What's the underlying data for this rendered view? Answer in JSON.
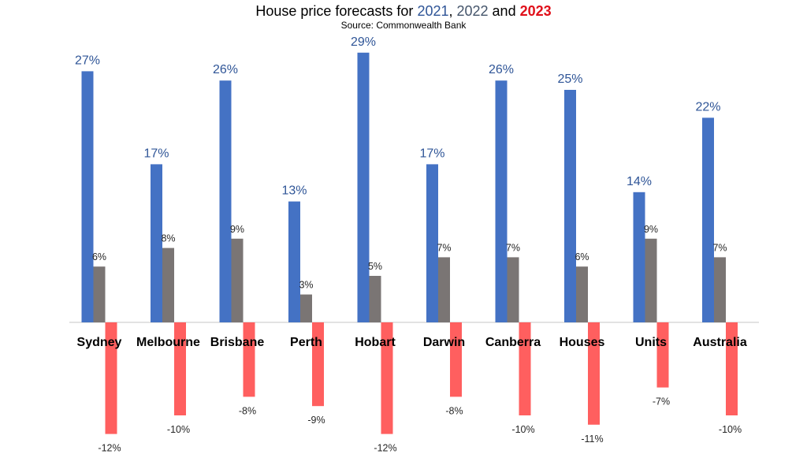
{
  "chart_data": {
    "type": "bar",
    "title_parts": [
      {
        "key": "prefix",
        "text": "House price forecasts for "
      },
      {
        "key": "y2021",
        "text": "2021"
      },
      {
        "key": "sep1",
        "text": ", "
      },
      {
        "key": "y2022",
        "text": "2022"
      },
      {
        "key": "sep2",
        "text": " and "
      },
      {
        "key": "y2023",
        "text": "2023"
      }
    ],
    "subtitle": "Source: Commonwealth Bank",
    "categories": [
      "Sydney",
      "Melbourne",
      "Brisbane",
      "Perth",
      "Hobart",
      "Darwin",
      "Canberra",
      "Houses",
      "Units",
      "Australia"
    ],
    "series": [
      {
        "key": "2021",
        "values": [
          27,
          17,
          26,
          13,
          29,
          17,
          26,
          25,
          14,
          22
        ],
        "labels": [
          "27%",
          "17%",
          "26%",
          "13%",
          "29%",
          "17%",
          "26%",
          "25%",
          "14%",
          "22%"
        ]
      },
      {
        "key": "2022",
        "values": [
          6,
          8,
          9,
          3,
          5,
          7,
          7,
          6,
          9,
          7
        ],
        "labels": [
          "6%",
          "8%",
          "9%",
          "3%",
          "5%",
          "7%",
          "7%",
          "6%",
          "9%",
          "7%"
        ]
      },
      {
        "key": "2023",
        "values": [
          -12,
          -10,
          -8,
          -9,
          -12,
          -8,
          -10,
          -11,
          -7,
          -10
        ],
        "labels": [
          "-12%",
          "-10%",
          "-8%",
          "-9%",
          "-12%",
          "-8%",
          "-10%",
          "-11%",
          "-7%",
          "-10%"
        ]
      }
    ],
    "colors": {
      "2021": "#4472C4",
      "2022": "#7A7574",
      "2023": "#FF5F5F",
      "title_2021": "#2F5597",
      "title_2022": "#44546A",
      "title_2023": "#E0101A",
      "label_2021": "#2F5597",
      "label_other": "#262626",
      "axis": "#D9D9D9",
      "category_text": "#000000"
    },
    "ylim": [
      -12,
      29
    ],
    "grid": false,
    "legend": "none",
    "xlabel": "",
    "ylabel": ""
  }
}
